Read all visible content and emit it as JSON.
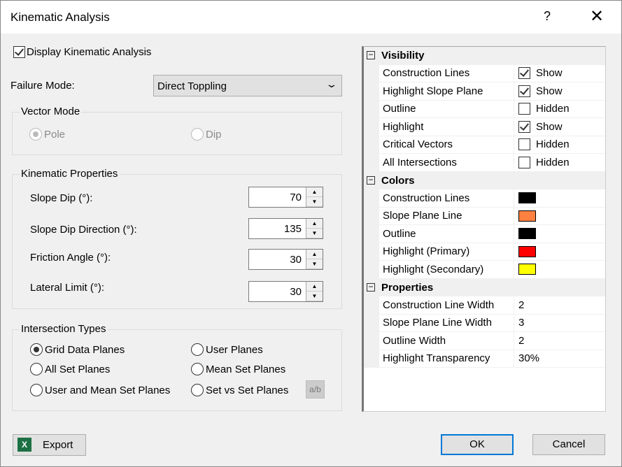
{
  "title": "Kinematic Analysis",
  "help": "?",
  "close": "✕",
  "display_checkbox": {
    "label": "Display Kinematic Analysis",
    "checked": true
  },
  "failure_mode": {
    "label": "Failure Mode:",
    "value": "Direct Toppling"
  },
  "vector_mode": {
    "title": "Vector Mode",
    "pole": "Pole",
    "dip": "Dip",
    "selected": "Pole"
  },
  "kinematic": {
    "title": "Kinematic Properties",
    "fields": [
      {
        "label": "Slope Dip (°):",
        "value": "70"
      },
      {
        "label": "Slope Dip Direction (°):",
        "value": "135"
      },
      {
        "label": "Friction Angle (°):",
        "value": "30"
      },
      {
        "label": "Lateral Limit (°):",
        "value": "30"
      }
    ]
  },
  "intersection": {
    "title": "Intersection Types",
    "options": [
      "Grid Data Planes",
      "User Planes",
      "All Set Planes",
      "Mean Set Planes",
      "User and Mean Set Planes",
      "Set vs Set Planes"
    ],
    "selected": "Grid Data Planes",
    "ab": "a/b"
  },
  "grid": [
    {
      "category": "Visibility",
      "rows": [
        {
          "name": "Construction Lines",
          "checked": true,
          "value": "Show"
        },
        {
          "name": "Highlight Slope Plane",
          "checked": true,
          "value": "Show"
        },
        {
          "name": "Outline",
          "checked": false,
          "value": "Hidden"
        },
        {
          "name": "Highlight",
          "checked": true,
          "value": "Show"
        },
        {
          "name": "Critical Vectors",
          "checked": false,
          "value": "Hidden"
        },
        {
          "name": "All Intersections",
          "checked": false,
          "value": "Hidden"
        }
      ]
    },
    {
      "category": "Colors",
      "rows": [
        {
          "name": "Construction Lines",
          "color": "#000000"
        },
        {
          "name": "Slope Plane Line",
          "color": "#ff8040"
        },
        {
          "name": "Outline",
          "color": "#000000"
        },
        {
          "name": "Highlight (Primary)",
          "color": "#ff0000"
        },
        {
          "name": "Highlight (Secondary)",
          "color": "#ffff00"
        }
      ]
    },
    {
      "category": "Properties",
      "rows": [
        {
          "name": "Construction Line Width",
          "value": "2"
        },
        {
          "name": "Slope Plane Line Width",
          "value": "3"
        },
        {
          "name": "Outline Width",
          "value": "2"
        },
        {
          "name": "Highlight Transparency",
          "value": "30%"
        }
      ]
    }
  ],
  "buttons": {
    "export": "Export",
    "ok": "OK",
    "cancel": "Cancel"
  }
}
